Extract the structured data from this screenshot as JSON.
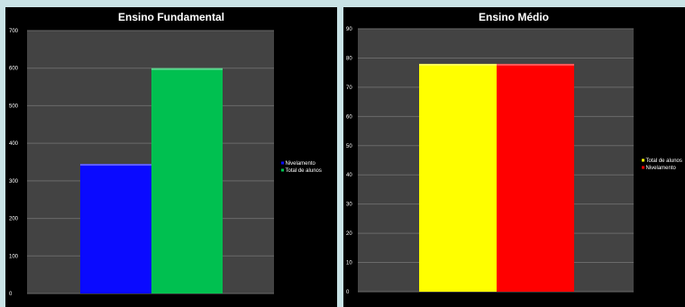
{
  "chart_data": [
    {
      "type": "bar",
      "title": "Ensino Fundamental",
      "xlabel": "",
      "ylabel": "",
      "ylim": [
        0,
        700
      ],
      "yticks": [
        0,
        100,
        200,
        300,
        400,
        500,
        600,
        700
      ],
      "grid": true,
      "legend_position": "right",
      "series": [
        {
          "name": "Nivelamento",
          "values": [
            345
          ],
          "color": "#0a0aff"
        },
        {
          "name": "Total de alunos",
          "values": [
            600
          ],
          "color": "#00c050"
        }
      ]
    },
    {
      "type": "bar",
      "title": "Ensino Médio",
      "xlabel": "",
      "ylabel": "",
      "ylim": [
        0,
        90
      ],
      "yticks": [
        0,
        10,
        20,
        30,
        40,
        50,
        60,
        70,
        80,
        90
      ],
      "grid": true,
      "legend_position": "right",
      "series": [
        {
          "name": "Total de alunos",
          "values": [
            78
          ],
          "color": "#ffff00"
        },
        {
          "name": "Nivelamento",
          "values": [
            78
          ],
          "color": "#ff0000"
        }
      ]
    }
  ]
}
